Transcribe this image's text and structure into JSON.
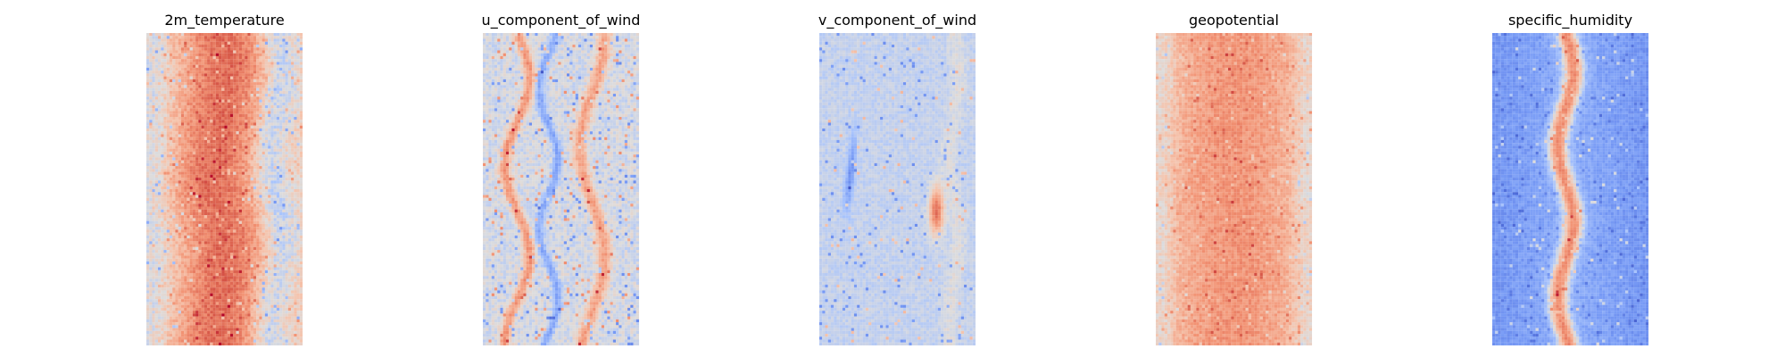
{
  "figure": {
    "background": "#ffffff"
  },
  "chart_data": [
    {
      "type": "heatmap",
      "title": "2m_temperature",
      "axes": "off",
      "grid": false,
      "colormap": "coolwarm",
      "pattern": "warm central band with cooler flanks"
    },
    {
      "type": "heatmap",
      "title": "u_component_of_wind",
      "axes": "off",
      "grid": false,
      "colormap": "coolwarm",
      "pattern": "neutral field with scattered warm and cool filaments"
    },
    {
      "type": "heatmap",
      "title": "v_component_of_wind",
      "axes": "off",
      "grid": false,
      "colormap": "coolwarm",
      "pattern": "mostly neutral-cool field with sparse extremes"
    },
    {
      "type": "heatmap",
      "title": "geopotential",
      "axes": "off",
      "grid": false,
      "colormap": "coolwarm",
      "pattern": "warm broad central region with cooler edges"
    },
    {
      "type": "heatmap",
      "title": "specific_humidity",
      "axes": "off",
      "grid": false,
      "colormap": "coolwarm",
      "pattern": "cool field with warm narrow central streak"
    }
  ]
}
